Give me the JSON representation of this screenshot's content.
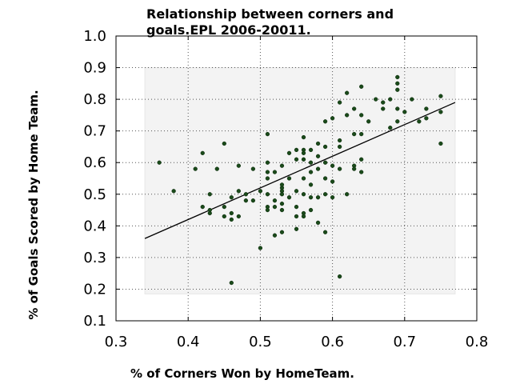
{
  "chart_data": {
    "type": "scatter",
    "title_lines": [
      "Relationship between corners and",
      "goals.EPL 2006-20011."
    ],
    "xlabel": "% of Corners Won by HomeTeam.",
    "ylabel": "% of Goals Scored by Home Team.",
    "xlim": [
      0.3,
      0.8
    ],
    "ylim": [
      0.1,
      1.0
    ],
    "x_ticks": [
      "0.3",
      "0.4",
      "0.5",
      "0.6",
      "0.7",
      "0.8"
    ],
    "y_ticks": [
      "0.1",
      "0.2",
      "0.3",
      "0.4",
      "0.5",
      "0.6",
      "0.7",
      "0.8",
      "0.9",
      "1.0"
    ],
    "grid": true,
    "colors": {
      "points": "#1a4a1a",
      "trendline": "#000000",
      "background_band": "#f3f3f3"
    },
    "trendline": {
      "x": [
        0.34,
        0.77
      ],
      "y": [
        0.36,
        0.79
      ]
    },
    "points": [
      [
        0.36,
        0.6
      ],
      [
        0.38,
        0.51
      ],
      [
        0.41,
        0.58
      ],
      [
        0.42,
        0.63
      ],
      [
        0.42,
        0.46
      ],
      [
        0.43,
        0.44
      ],
      [
        0.43,
        0.45
      ],
      [
        0.43,
        0.5
      ],
      [
        0.44,
        0.58
      ],
      [
        0.45,
        0.66
      ],
      [
        0.45,
        0.46
      ],
      [
        0.45,
        0.43
      ],
      [
        0.46,
        0.44
      ],
      [
        0.46,
        0.42
      ],
      [
        0.46,
        0.49
      ],
      [
        0.46,
        0.22
      ],
      [
        0.47,
        0.43
      ],
      [
        0.47,
        0.59
      ],
      [
        0.47,
        0.51
      ],
      [
        0.48,
        0.48
      ],
      [
        0.48,
        0.5
      ],
      [
        0.49,
        0.58
      ],
      [
        0.49,
        0.48
      ],
      [
        0.5,
        0.51
      ],
      [
        0.5,
        0.33
      ],
      [
        0.51,
        0.55
      ],
      [
        0.51,
        0.6
      ],
      [
        0.51,
        0.69
      ],
      [
        0.51,
        0.5
      ],
      [
        0.51,
        0.46
      ],
      [
        0.51,
        0.45
      ],
      [
        0.51,
        0.57
      ],
      [
        0.52,
        0.48
      ],
      [
        0.52,
        0.57
      ],
      [
        0.52,
        0.46
      ],
      [
        0.52,
        0.37
      ],
      [
        0.53,
        0.52
      ],
      [
        0.53,
        0.53
      ],
      [
        0.53,
        0.59
      ],
      [
        0.53,
        0.51
      ],
      [
        0.53,
        0.5
      ],
      [
        0.53,
        0.47
      ],
      [
        0.53,
        0.45
      ],
      [
        0.53,
        0.38
      ],
      [
        0.54,
        0.55
      ],
      [
        0.54,
        0.63
      ],
      [
        0.54,
        0.49
      ],
      [
        0.55,
        0.64
      ],
      [
        0.55,
        0.61
      ],
      [
        0.55,
        0.51
      ],
      [
        0.55,
        0.46
      ],
      [
        0.55,
        0.43
      ],
      [
        0.55,
        0.39
      ],
      [
        0.56,
        0.68
      ],
      [
        0.56,
        0.64
      ],
      [
        0.56,
        0.63
      ],
      [
        0.56,
        0.61
      ],
      [
        0.56,
        0.55
      ],
      [
        0.56,
        0.5
      ],
      [
        0.56,
        0.44
      ],
      [
        0.56,
        0.43
      ],
      [
        0.57,
        0.64
      ],
      [
        0.57,
        0.6
      ],
      [
        0.57,
        0.57
      ],
      [
        0.57,
        0.53
      ],
      [
        0.57,
        0.49
      ],
      [
        0.57,
        0.45
      ],
      [
        0.58,
        0.66
      ],
      [
        0.58,
        0.62
      ],
      [
        0.58,
        0.58
      ],
      [
        0.58,
        0.49
      ],
      [
        0.58,
        0.41
      ],
      [
        0.59,
        0.73
      ],
      [
        0.59,
        0.65
      ],
      [
        0.59,
        0.6
      ],
      [
        0.59,
        0.55
      ],
      [
        0.59,
        0.5
      ],
      [
        0.59,
        0.38
      ],
      [
        0.6,
        0.74
      ],
      [
        0.6,
        0.59
      ],
      [
        0.6,
        0.54
      ],
      [
        0.6,
        0.49
      ],
      [
        0.61,
        0.79
      ],
      [
        0.61,
        0.67
      ],
      [
        0.61,
        0.65
      ],
      [
        0.61,
        0.58
      ],
      [
        0.61,
        0.24
      ],
      [
        0.62,
        0.82
      ],
      [
        0.62,
        0.75
      ],
      [
        0.62,
        0.5
      ],
      [
        0.63,
        0.77
      ],
      [
        0.63,
        0.69
      ],
      [
        0.63,
        0.59
      ],
      [
        0.63,
        0.58
      ],
      [
        0.64,
        0.84
      ],
      [
        0.64,
        0.75
      ],
      [
        0.64,
        0.69
      ],
      [
        0.64,
        0.61
      ],
      [
        0.64,
        0.57
      ],
      [
        0.65,
        0.73
      ],
      [
        0.66,
        0.8
      ],
      [
        0.67,
        0.79
      ],
      [
        0.67,
        0.77
      ],
      [
        0.68,
        0.8
      ],
      [
        0.68,
        0.71
      ],
      [
        0.69,
        0.87
      ],
      [
        0.69,
        0.85
      ],
      [
        0.69,
        0.83
      ],
      [
        0.69,
        0.77
      ],
      [
        0.69,
        0.73
      ],
      [
        0.7,
        0.76
      ],
      [
        0.71,
        0.8
      ],
      [
        0.72,
        0.73
      ],
      [
        0.73,
        0.77
      ],
      [
        0.73,
        0.74
      ],
      [
        0.75,
        0.81
      ],
      [
        0.75,
        0.76
      ],
      [
        0.75,
        0.66
      ]
    ]
  }
}
